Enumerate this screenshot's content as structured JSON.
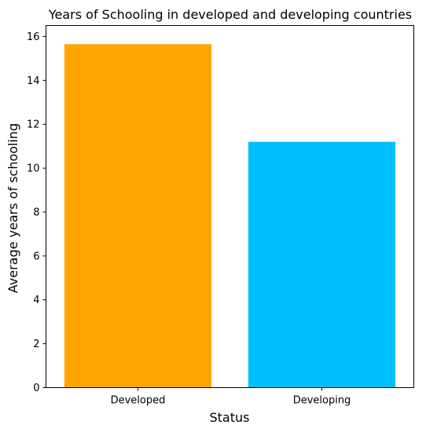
{
  "chart_data": {
    "type": "bar",
    "title": "Years of Schooling in developed and developing countries",
    "xlabel": "Status",
    "ylabel": "Average years of schooling",
    "categories": [
      "Developed",
      "Developing"
    ],
    "values": [
      15.65,
      11.2
    ],
    "colors": [
      "#ffa500",
      "#00bfff"
    ],
    "ylim": [
      0,
      16.5
    ],
    "yticks": [
      0,
      2,
      4,
      6,
      8,
      10,
      12,
      14,
      16
    ],
    "grid": false,
    "legend": "none"
  }
}
